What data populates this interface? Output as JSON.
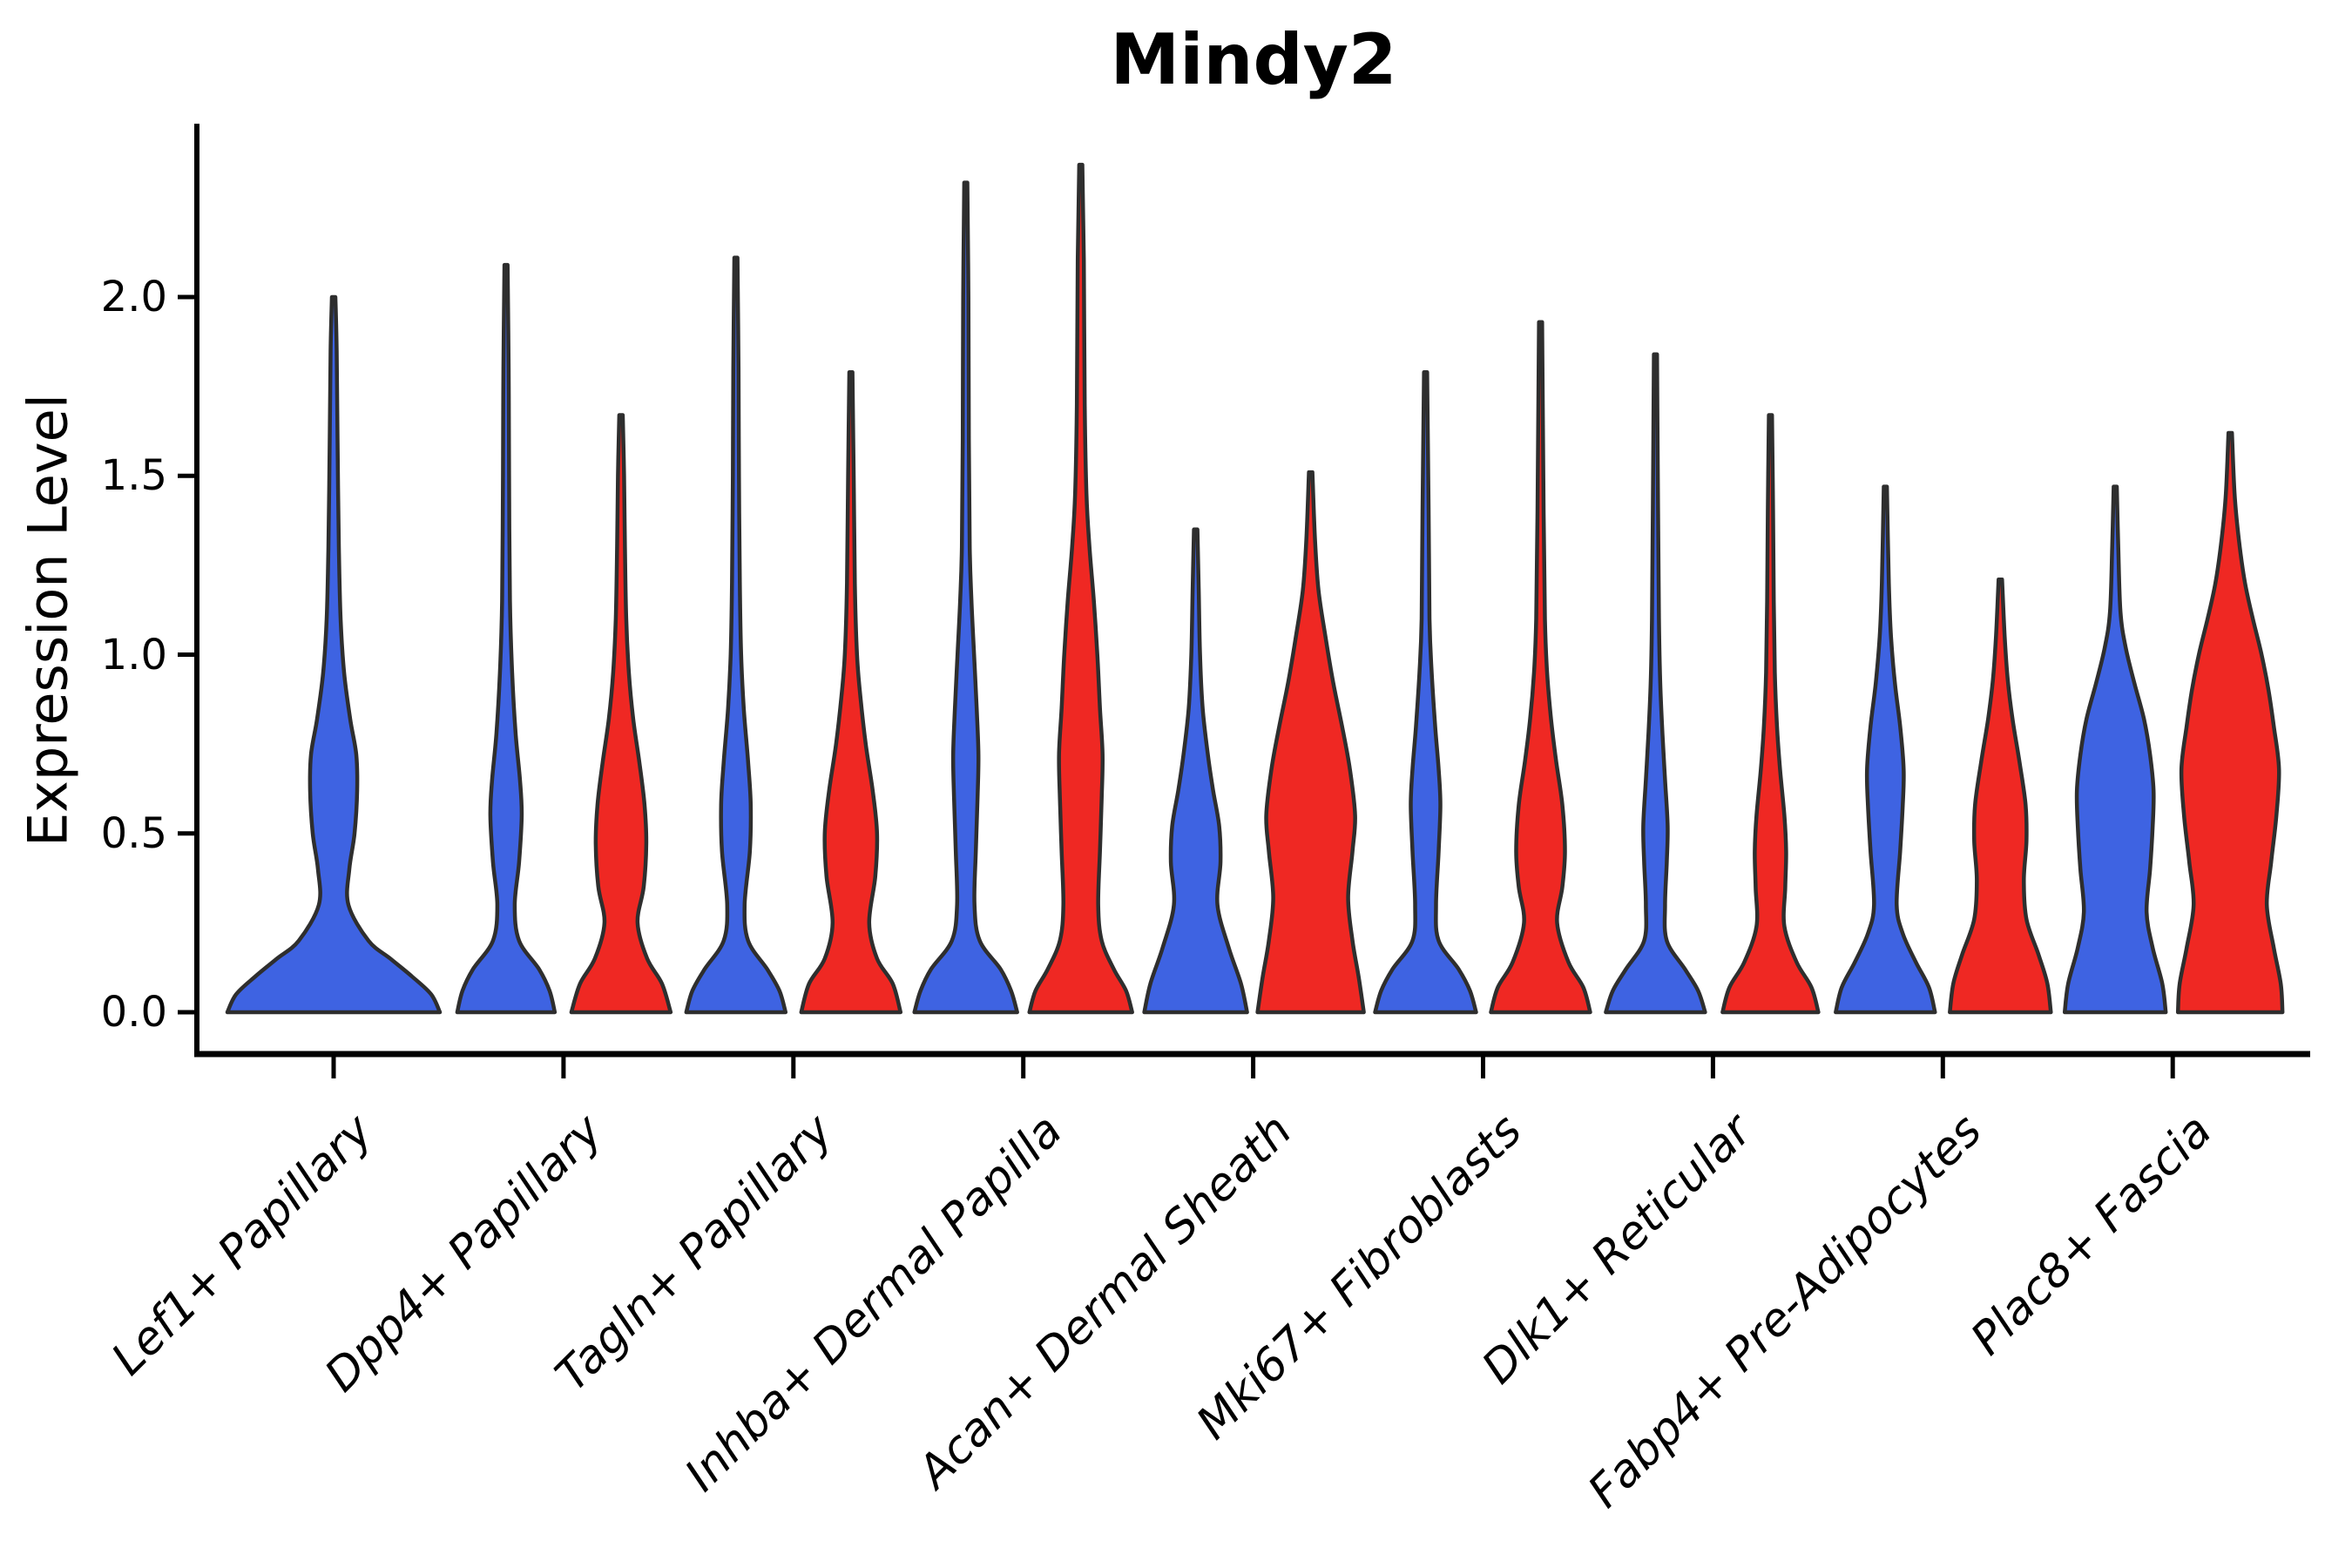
{
  "colors": {
    "blue": "#3E63E2",
    "red": "#EF2823",
    "outline": "#2E2E2E",
    "axis": "#000000"
  },
  "chart_data": {
    "type": "violin",
    "title": "Mindy2",
    "ylabel": "Expression Level",
    "xlabel": "",
    "grid": false,
    "legend_position": "none",
    "ytick_labels": [
      "0.0",
      "0.5",
      "1.0",
      "1.5",
      "2.0"
    ],
    "ytick_values": [
      0.0,
      0.5,
      1.0,
      1.5,
      2.0
    ],
    "ylim": [
      -0.12,
      2.49
    ],
    "categories": [
      "Lef1+ Papillary",
      "Dpp4+ Papillary",
      "Tagln+ Papillary",
      "Inhba+ Dermal Papilla",
      "Acan+ Dermal Sheath",
      "Mki67+ Fibroblasts",
      "Dlk1+ Reticular",
      "Fabp4+ Pre-Adipocytes",
      "Plac8+ Fascia"
    ],
    "series": [
      {
        "name": "blue",
        "color": "#3E63E2",
        "max_expression": [
          2.0,
          2.09,
          2.11,
          2.32,
          1.35,
          1.79,
          1.84,
          1.47,
          1.47
        ]
      },
      {
        "name": "red",
        "color": "#EF2823",
        "max_expression": [
          null,
          1.67,
          1.79,
          2.37,
          1.51,
          1.93,
          1.67,
          1.21,
          1.62
        ]
      }
    ],
    "violins": [
      {
        "cat_index": 0,
        "category": "Lef1+ Papillary",
        "series": "blue",
        "side": "center",
        "max": 2.0,
        "profile": [
          [
            0,
            122
          ],
          [
            0.05,
            112
          ],
          [
            0.1,
            90
          ],
          [
            0.15,
            65
          ],
          [
            0.2,
            40
          ],
          [
            0.3,
            17
          ],
          [
            0.4,
            18
          ],
          [
            0.5,
            24
          ],
          [
            0.62,
            27
          ],
          [
            0.72,
            26
          ],
          [
            0.82,
            19
          ],
          [
            0.95,
            12
          ],
          [
            1.1,
            8
          ],
          [
            1.3,
            6
          ],
          [
            1.6,
            4.5
          ],
          [
            1.85,
            3.5
          ],
          [
            2.0,
            2
          ]
        ]
      },
      {
        "cat_index": 1,
        "category": "Dpp4+ Papillary",
        "series": "blue",
        "side": "left",
        "max": 2.09,
        "profile": [
          [
            0,
            56
          ],
          [
            0.06,
            50
          ],
          [
            0.12,
            38
          ],
          [
            0.2,
            15
          ],
          [
            0.3,
            10
          ],
          [
            0.42,
            15
          ],
          [
            0.55,
            18
          ],
          [
            0.65,
            16
          ],
          [
            0.78,
            11
          ],
          [
            0.95,
            7
          ],
          [
            1.15,
            4.5
          ],
          [
            1.5,
            3.5
          ],
          [
            1.8,
            3
          ],
          [
            2.09,
            1.8
          ]
        ]
      },
      {
        "cat_index": 1,
        "category": "Dpp4+ Papillary",
        "series": "red",
        "side": "right",
        "max": 1.67,
        "profile": [
          [
            0,
            57
          ],
          [
            0.08,
            47
          ],
          [
            0.15,
            30
          ],
          [
            0.25,
            19
          ],
          [
            0.35,
            26
          ],
          [
            0.47,
            29
          ],
          [
            0.58,
            27
          ],
          [
            0.7,
            21
          ],
          [
            0.82,
            14
          ],
          [
            0.95,
            9
          ],
          [
            1.1,
            6
          ],
          [
            1.3,
            4.5
          ],
          [
            1.5,
            3.5
          ],
          [
            1.67,
            2
          ]
        ]
      },
      {
        "cat_index": 2,
        "category": "Tagln+ Papillary",
        "series": "blue",
        "side": "left",
        "max": 2.11,
        "profile": [
          [
            0,
            57
          ],
          [
            0.06,
            50
          ],
          [
            0.12,
            36
          ],
          [
            0.2,
            14
          ],
          [
            0.3,
            10
          ],
          [
            0.45,
            16
          ],
          [
            0.58,
            17
          ],
          [
            0.7,
            14
          ],
          [
            0.85,
            9
          ],
          [
            1.0,
            6
          ],
          [
            1.2,
            4.5
          ],
          [
            1.5,
            3.5
          ],
          [
            1.8,
            3
          ],
          [
            2.11,
            1.8
          ]
        ]
      },
      {
        "cat_index": 2,
        "category": "Tagln+ Papillary",
        "series": "red",
        "side": "right",
        "max": 1.79,
        "profile": [
          [
            0,
            57
          ],
          [
            0.08,
            48
          ],
          [
            0.15,
            30
          ],
          [
            0.25,
            21
          ],
          [
            0.38,
            28
          ],
          [
            0.5,
            30
          ],
          [
            0.62,
            25
          ],
          [
            0.75,
            17
          ],
          [
            0.88,
            11
          ],
          [
            1.0,
            7
          ],
          [
            1.2,
            4.5
          ],
          [
            1.5,
            3.2
          ],
          [
            1.79,
            1.8
          ]
        ]
      },
      {
        "cat_index": 3,
        "category": "Inhba+ Dermal Papilla",
        "series": "blue",
        "side": "left",
        "max": 2.32,
        "profile": [
          [
            0,
            59
          ],
          [
            0.06,
            52
          ],
          [
            0.12,
            40
          ],
          [
            0.2,
            16
          ],
          [
            0.3,
            10
          ],
          [
            0.45,
            11.5
          ],
          [
            0.6,
            13.5
          ],
          [
            0.72,
            14.5
          ],
          [
            0.85,
            12.5
          ],
          [
            1.0,
            9.5
          ],
          [
            1.15,
            6.5
          ],
          [
            1.3,
            4.5
          ],
          [
            1.6,
            3.5
          ],
          [
            2.0,
            3
          ],
          [
            2.32,
            1.8
          ]
        ]
      },
      {
        "cat_index": 3,
        "category": "Inhba+ Dermal Papilla",
        "series": "red",
        "side": "right",
        "max": 2.37,
        "profile": [
          [
            0,
            59
          ],
          [
            0.06,
            52
          ],
          [
            0.12,
            38
          ],
          [
            0.2,
            24
          ],
          [
            0.3,
            20
          ],
          [
            0.45,
            22
          ],
          [
            0.6,
            24
          ],
          [
            0.72,
            25
          ],
          [
            0.85,
            22
          ],
          [
            1.0,
            19
          ],
          [
            1.15,
            15
          ],
          [
            1.3,
            10
          ],
          [
            1.45,
            6.5
          ],
          [
            1.7,
            4.5
          ],
          [
            2.1,
            3.5
          ],
          [
            2.37,
            1.8
          ]
        ]
      },
      {
        "cat_index": 4,
        "category": "Acan+ Dermal Sheath",
        "series": "blue",
        "side": "left",
        "max": 1.35,
        "profile": [
          [
            0,
            59
          ],
          [
            0.08,
            52
          ],
          [
            0.18,
            38
          ],
          [
            0.3,
            25
          ],
          [
            0.42,
            28.5
          ],
          [
            0.52,
            27
          ],
          [
            0.62,
            20
          ],
          [
            0.72,
            14
          ],
          [
            0.85,
            8
          ],
          [
            1.0,
            5
          ],
          [
            1.18,
            3.5
          ],
          [
            1.35,
            2
          ]
        ]
      },
      {
        "cat_index": 4,
        "category": "Acan+ Dermal Sheath",
        "series": "red",
        "side": "right",
        "max": 1.51,
        "profile": [
          [
            0,
            61
          ],
          [
            0.1,
            55
          ],
          [
            0.2,
            48
          ],
          [
            0.32,
            43
          ],
          [
            0.45,
            48
          ],
          [
            0.55,
            51
          ],
          [
            0.68,
            45
          ],
          [
            0.8,
            36
          ],
          [
            0.92,
            26
          ],
          [
            1.05,
            17
          ],
          [
            1.18,
            9
          ],
          [
            1.32,
            5
          ],
          [
            1.51,
            2
          ]
        ]
      },
      {
        "cat_index": 5,
        "category": "Mki67+ Fibroblasts",
        "series": "blue",
        "side": "left",
        "max": 1.79,
        "profile": [
          [
            0,
            58
          ],
          [
            0.06,
            51
          ],
          [
            0.12,
            38
          ],
          [
            0.2,
            15
          ],
          [
            0.3,
            12
          ],
          [
            0.45,
            15
          ],
          [
            0.58,
            17
          ],
          [
            0.68,
            15
          ],
          [
            0.8,
            11
          ],
          [
            0.95,
            7
          ],
          [
            1.1,
            4.5
          ],
          [
            1.4,
            3.5
          ],
          [
            1.79,
            1.8
          ]
        ]
      },
      {
        "cat_index": 5,
        "category": "Mki67+ Fibroblasts",
        "series": "red",
        "side": "right",
        "max": 1.93,
        "profile": [
          [
            0,
            57
          ],
          [
            0.07,
            49
          ],
          [
            0.14,
            32
          ],
          [
            0.25,
            19
          ],
          [
            0.35,
            25
          ],
          [
            0.45,
            28
          ],
          [
            0.58,
            25
          ],
          [
            0.7,
            18
          ],
          [
            0.82,
            12
          ],
          [
            0.95,
            7.5
          ],
          [
            1.1,
            5
          ],
          [
            1.4,
            3.5
          ],
          [
            1.93,
            1.8
          ]
        ]
      },
      {
        "cat_index": 6,
        "category": "Dlk1+ Reticular",
        "series": "blue",
        "side": "left",
        "max": 1.84,
        "profile": [
          [
            0,
            57
          ],
          [
            0.06,
            49
          ],
          [
            0.12,
            34
          ],
          [
            0.2,
            13
          ],
          [
            0.3,
            11
          ],
          [
            0.42,
            13
          ],
          [
            0.52,
            14
          ],
          [
            0.65,
            11
          ],
          [
            0.78,
            8
          ],
          [
            0.92,
            5.5
          ],
          [
            1.1,
            4
          ],
          [
            1.4,
            3
          ],
          [
            1.84,
            1.8
          ]
        ]
      },
      {
        "cat_index": 6,
        "category": "Dlk1+ Reticular",
        "series": "red",
        "side": "right",
        "max": 1.67,
        "profile": [
          [
            0,
            55
          ],
          [
            0.07,
            47
          ],
          [
            0.14,
            30
          ],
          [
            0.24,
            16
          ],
          [
            0.35,
            17
          ],
          [
            0.45,
            18
          ],
          [
            0.55,
            16
          ],
          [
            0.68,
            11
          ],
          [
            0.8,
            7.5
          ],
          [
            0.95,
            5
          ],
          [
            1.15,
            3.8
          ],
          [
            1.4,
            3
          ],
          [
            1.67,
            1.8
          ]
        ]
      },
      {
        "cat_index": 7,
        "category": "Fabp4+ Pre-Adipocytes",
        "series": "blue",
        "side": "left",
        "max": 1.47,
        "profile": [
          [
            0,
            57
          ],
          [
            0.07,
            50
          ],
          [
            0.14,
            35
          ],
          [
            0.22,
            20
          ],
          [
            0.3,
            13
          ],
          [
            0.45,
            17
          ],
          [
            0.58,
            20
          ],
          [
            0.68,
            21
          ],
          [
            0.8,
            17
          ],
          [
            0.92,
            11
          ],
          [
            1.05,
            6.5
          ],
          [
            1.2,
            4
          ],
          [
            1.47,
            1.8
          ]
        ]
      },
      {
        "cat_index": 7,
        "category": "Fabp4+ Pre-Adipocytes",
        "series": "red",
        "side": "right",
        "max": 1.21,
        "profile": [
          [
            0,
            58
          ],
          [
            0.08,
            54
          ],
          [
            0.16,
            44
          ],
          [
            0.26,
            30
          ],
          [
            0.37,
            27
          ],
          [
            0.48,
            30
          ],
          [
            0.58,
            29
          ],
          [
            0.7,
            22
          ],
          [
            0.82,
            14
          ],
          [
            0.93,
            8.5
          ],
          [
            1.05,
            5
          ],
          [
            1.21,
            2
          ]
        ]
      },
      {
        "cat_index": 8,
        "category": "Plac8+ Fascia",
        "series": "blue",
        "side": "left",
        "max": 1.47,
        "profile": [
          [
            0,
            58
          ],
          [
            0.08,
            54
          ],
          [
            0.18,
            43
          ],
          [
            0.28,
            36
          ],
          [
            0.4,
            40
          ],
          [
            0.52,
            43
          ],
          [
            0.62,
            44
          ],
          [
            0.72,
            40
          ],
          [
            0.82,
            33
          ],
          [
            0.92,
            22
          ],
          [
            1.02,
            12
          ],
          [
            1.12,
            6
          ],
          [
            1.3,
            3.5
          ],
          [
            1.47,
            1.8
          ]
        ]
      },
      {
        "cat_index": 8,
        "category": "Plac8+ Fascia",
        "series": "red",
        "side": "right",
        "max": 1.62,
        "profile": [
          [
            0,
            60
          ],
          [
            0.08,
            58
          ],
          [
            0.18,
            50
          ],
          [
            0.3,
            42
          ],
          [
            0.42,
            47
          ],
          [
            0.55,
            53
          ],
          [
            0.68,
            56
          ],
          [
            0.8,
            50
          ],
          [
            0.9,
            44
          ],
          [
            1.0,
            36
          ],
          [
            1.1,
            26
          ],
          [
            1.2,
            17
          ],
          [
            1.32,
            10
          ],
          [
            1.45,
            5
          ],
          [
            1.62,
            2
          ]
        ]
      }
    ]
  }
}
